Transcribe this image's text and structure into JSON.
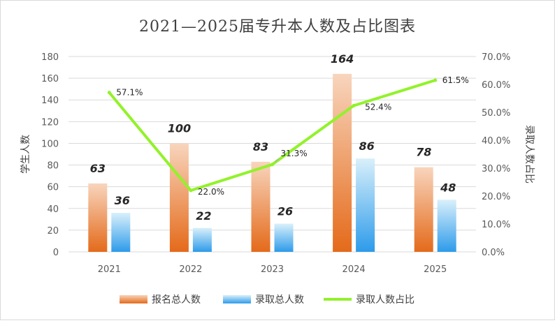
{
  "chart_data": {
    "type": "bar",
    "title": "2021—2025届专升本人数及占比图表",
    "categories": [
      "2021",
      "2022",
      "2023",
      "2024",
      "2025"
    ],
    "series": [
      {
        "name": "报名总人数",
        "type": "bar",
        "axis": "left",
        "values": [
          63,
          100,
          83,
          164,
          78
        ],
        "labels": [
          "63",
          "100",
          "83",
          "164",
          "78"
        ]
      },
      {
        "name": "录取总人数",
        "type": "bar",
        "axis": "left",
        "values": [
          36,
          22,
          26,
          86,
          48
        ],
        "labels": [
          "36",
          "22",
          "26",
          "86",
          "48"
        ]
      },
      {
        "name": "录取人数占比",
        "type": "line",
        "axis": "right",
        "values": [
          57.1,
          22.0,
          31.3,
          52.4,
          61.5
        ],
        "labels": [
          "57.1%",
          "22.0%",
          "31.3%",
          "52.4%",
          "61.5%"
        ]
      }
    ],
    "ylabel": "学生人数",
    "y2label": "录取人数占比",
    "ylim": [
      0,
      180
    ],
    "y2lim": [
      0,
      70
    ],
    "yticks": [
      "0",
      "20",
      "40",
      "60",
      "80",
      "100",
      "120",
      "140",
      "160",
      "180"
    ],
    "y2ticks": [
      "0.0%",
      "10.0%",
      "20.0%",
      "30.0%",
      "40.0%",
      "50.0%",
      "60.0%",
      "70.0%"
    ],
    "grid": true,
    "legend": "bottom",
    "colors": {
      "apply_top": "#f8d5bd",
      "apply_bottom": "#e46a1a",
      "admit_top": "#d9f0fb",
      "admit_bottom": "#2d9bea",
      "line": "#92f22a",
      "grid": "#d9d9d9"
    }
  }
}
